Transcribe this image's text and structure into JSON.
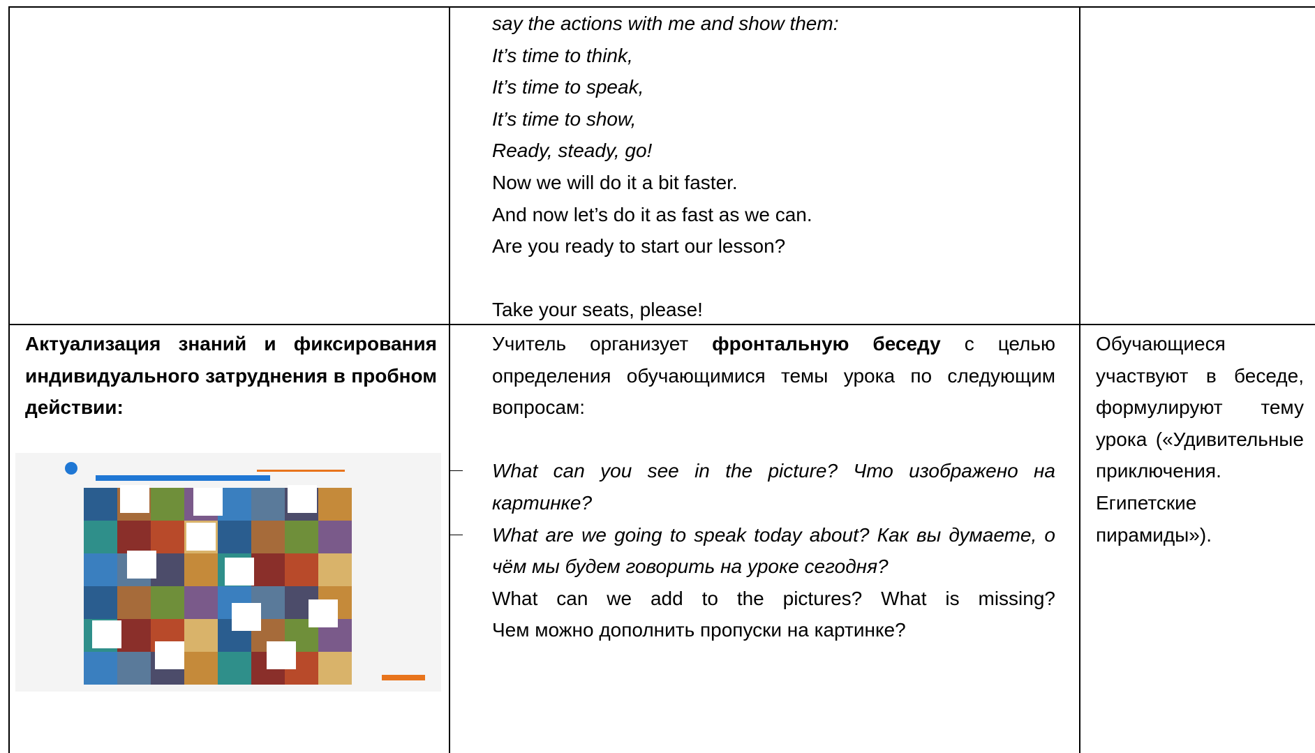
{
  "table": {
    "rows": [
      {
        "cells": [
          null,
          {
            "lines": [
              "say the actions with me and show them:",
              "It’s time to think,",
              "It’s time to speak,",
              "It’s time to show,",
              "Ready, steady, go!",
              "Now we will do it a bit faster.",
              "And now let’s do it as fast as we can.",
              "Are you ready to start our lesson?",
              "Take your seats, please!"
            ]
          },
          null
        ]
      },
      {
        "cells": [
          {
            "heading": "Актуализация знаний и фиксирования индивидуального затруднения в пробном действии:"
          },
          {
            "intro": [
              "Учитель организует ",
              "фронтальную беседу",
              " с целью определения обучающимися темы урока по следующим вопросам:"
            ],
            "questions": [
              "What can you see in the picture? Что изображено на картинке?",
              "What are we going to speak today about? Как вы думаете, о чём мы будем говорить на уроке сегодня?"
            ],
            "closing": [
              "What can we add to the pictures? What is missing?",
              "Чем можно дополнить пропуски на картинке?"
            ]
          },
          {
            "text": "Обучающиеся участвуют в беседе, формулируют тему урока («Удивительные приключения. Египетские пирамиды»)."
          }
        ]
      }
    ]
  }
}
